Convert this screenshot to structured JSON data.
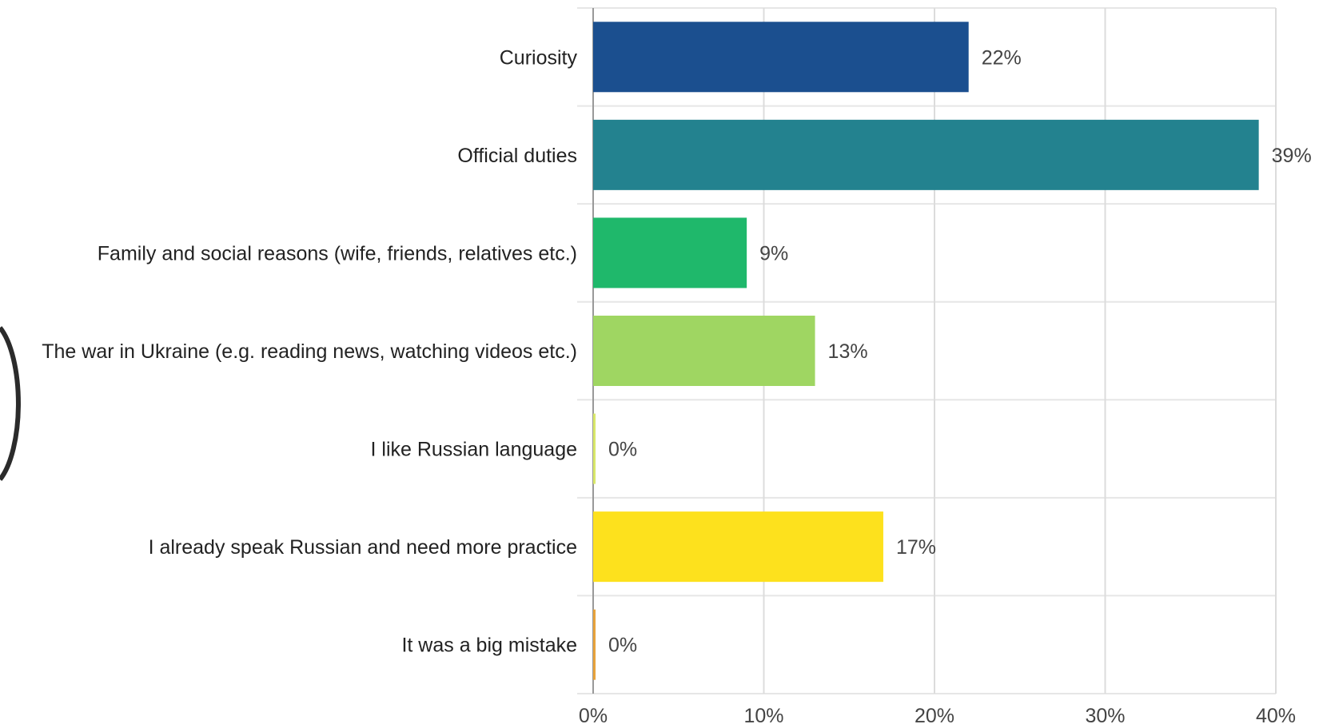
{
  "chart_data": {
    "type": "bar",
    "orientation": "horizontal",
    "categories": [
      "Curiosity",
      "Official duties",
      "Family and social reasons (wife, friends, relatives etc.)",
      "The war in Ukraine (e.g. reading news, watching videos etc.)",
      "I like Russian language",
      "I already speak Russian and need more practice",
      "It was a big mistake"
    ],
    "values": [
      22,
      39,
      9,
      13,
      0,
      17,
      0
    ],
    "value_labels": [
      "22%",
      "39%",
      "9%",
      "13%",
      "0%",
      "17%",
      "0%"
    ],
    "colors": [
      "#1b4f8f",
      "#23828f",
      "#1fb86b",
      "#9fd662",
      "#d9e86a",
      "#fde11d",
      "#e8a33c"
    ],
    "xlim": [
      0,
      40
    ],
    "xticks": [
      0,
      10,
      20,
      30,
      40
    ],
    "xtick_labels": [
      "0%",
      "10%",
      "20%",
      "30%",
      "40%"
    ],
    "title": "",
    "xlabel": "",
    "ylabel": "",
    "grid": true
  }
}
